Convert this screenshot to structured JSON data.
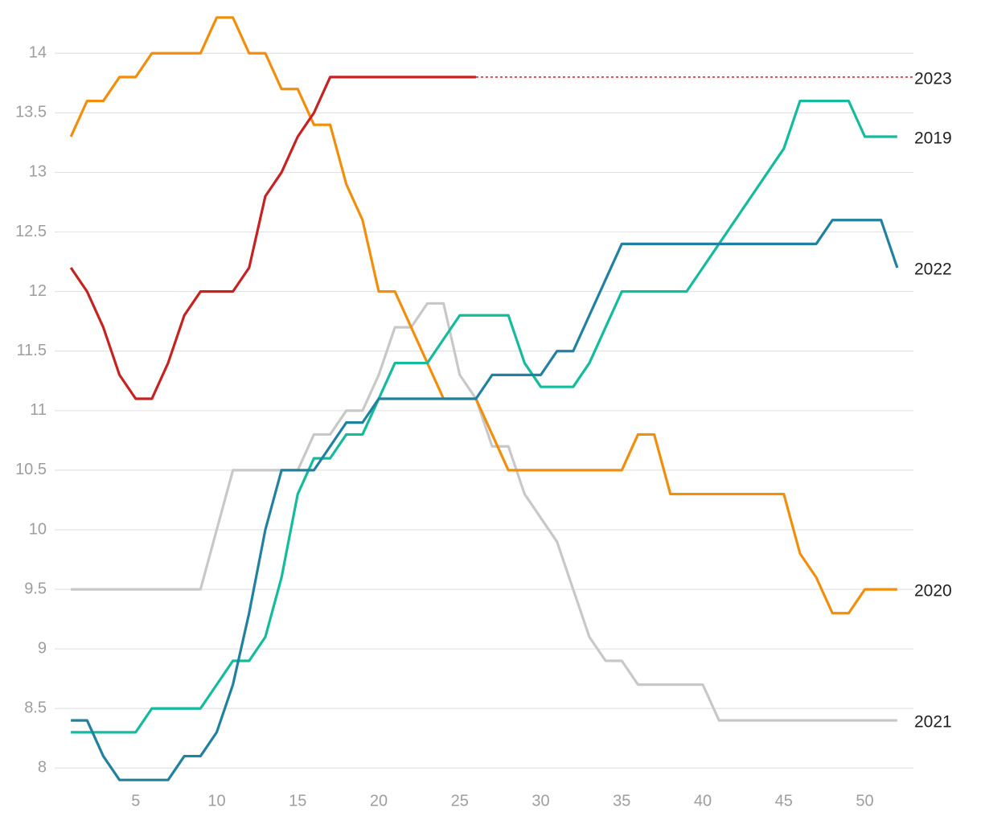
{
  "chart_data": {
    "type": "line",
    "x": [
      1,
      2,
      3,
      4,
      5,
      6,
      7,
      8,
      9,
      10,
      11,
      12,
      13,
      14,
      15,
      16,
      17,
      18,
      19,
      20,
      21,
      22,
      23,
      24,
      25,
      26,
      27,
      28,
      29,
      30,
      31,
      32,
      33,
      34,
      35,
      36,
      37,
      38,
      39,
      40,
      41,
      42,
      43,
      44,
      45,
      46,
      47,
      48,
      49,
      50,
      51,
      52
    ],
    "xlim": [
      0,
      53
    ],
    "xticks": [
      5,
      10,
      15,
      20,
      25,
      30,
      35,
      40,
      45,
      50
    ],
    "ylim": [
      7.8,
      14.4
    ],
    "yticks": [
      8,
      8.5,
      9,
      9.5,
      10,
      10.5,
      11,
      11.5,
      12,
      12.5,
      13,
      13.5,
      14
    ],
    "grid": true,
    "series": [
      {
        "name": "2021",
        "color": "#c8c8c8",
        "values": [
          9.5,
          9.5,
          9.5,
          9.5,
          9.5,
          9.5,
          9.5,
          9.5,
          9.5,
          10.0,
          10.5,
          10.5,
          10.5,
          10.5,
          10.5,
          10.8,
          10.8,
          11.0,
          11.0,
          11.3,
          11.7,
          11.7,
          11.9,
          11.9,
          11.3,
          11.1,
          10.7,
          10.7,
          10.3,
          10.1,
          9.9,
          9.5,
          9.1,
          8.9,
          8.9,
          8.7,
          8.7,
          8.7,
          8.7,
          8.7,
          8.4,
          8.4,
          8.4,
          8.4,
          8.4,
          8.4,
          8.4,
          8.4,
          8.4,
          8.4,
          8.4,
          8.4
        ]
      },
      {
        "name": "2020",
        "color": "#f28e0c",
        "values": [
          13.3,
          13.6,
          13.6,
          13.8,
          13.8,
          14.0,
          14.0,
          14.0,
          14.0,
          14.3,
          14.3,
          14.0,
          14.0,
          13.7,
          13.7,
          13.4,
          13.4,
          12.9,
          12.6,
          12.0,
          12.0,
          11.7,
          11.4,
          11.1,
          11.1,
          11.1,
          10.8,
          10.5,
          10.5,
          10.5,
          10.5,
          10.5,
          10.5,
          10.5,
          10.5,
          10.8,
          10.8,
          10.3,
          10.3,
          10.3,
          10.3,
          10.3,
          10.3,
          10.3,
          10.3,
          9.8,
          9.6,
          9.3,
          9.3,
          9.5,
          9.5,
          9.5
        ]
      },
      {
        "name": "2019",
        "color": "#14bb9c",
        "values": [
          8.3,
          8.3,
          8.3,
          8.3,
          8.3,
          8.5,
          8.5,
          8.5,
          8.5,
          8.7,
          8.9,
          8.9,
          9.1,
          9.6,
          10.3,
          10.6,
          10.6,
          10.8,
          10.8,
          11.1,
          11.4,
          11.4,
          11.4,
          11.6,
          11.8,
          11.8,
          11.8,
          11.8,
          11.4,
          11.2,
          11.2,
          11.2,
          11.4,
          11.7,
          12.0,
          12.0,
          12.0,
          12.0,
          12.0,
          12.2,
          12.4,
          12.6,
          12.8,
          13.0,
          13.2,
          13.6,
          13.6,
          13.6,
          13.6,
          13.3,
          13.3,
          13.3
        ]
      },
      {
        "name": "2022",
        "color": "#21819f",
        "values": [
          8.4,
          8.4,
          8.1,
          7.9,
          7.9,
          7.9,
          7.9,
          8.1,
          8.1,
          8.3,
          8.7,
          9.3,
          10.0,
          10.5,
          10.5,
          10.5,
          10.7,
          10.9,
          10.9,
          11.1,
          11.1,
          11.1,
          11.1,
          11.1,
          11.1,
          11.1,
          11.3,
          11.3,
          11.3,
          11.3,
          11.5,
          11.5,
          11.8,
          12.1,
          12.4,
          12.4,
          12.4,
          12.4,
          12.4,
          12.4,
          12.4,
          12.4,
          12.4,
          12.4,
          12.4,
          12.4,
          12.4,
          12.6,
          12.6,
          12.6,
          12.6,
          12.2
        ]
      },
      {
        "name": "2023",
        "color": "#c62222",
        "extend_dotted": true,
        "values": [
          12.2,
          12.0,
          11.7,
          11.3,
          11.1,
          11.1,
          11.4,
          11.8,
          12.0,
          12.0,
          12.0,
          12.2,
          12.8,
          13.0,
          13.3,
          13.5,
          13.8,
          13.8,
          13.8,
          13.8,
          13.8,
          13.8,
          13.8,
          13.8,
          13.8,
          13.8,
          null,
          null,
          null,
          null,
          null,
          null,
          null,
          null,
          null,
          null,
          null,
          null,
          null,
          null,
          null,
          null,
          null,
          null,
          null,
          null,
          null,
          null,
          null,
          null,
          null,
          null
        ]
      }
    ]
  }
}
